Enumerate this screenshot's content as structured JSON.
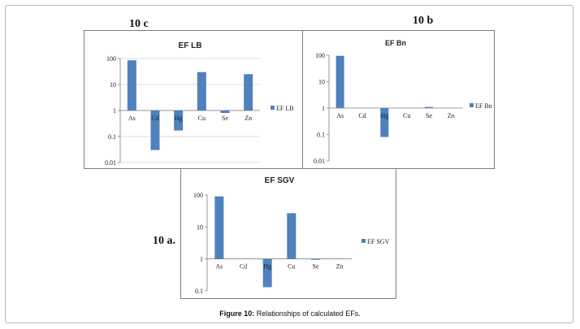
{
  "panel_labels": {
    "c": "10 c",
    "b": "10 b",
    "a": "10 a."
  },
  "caption": {
    "prefix": "Figure 10:",
    "text": " Relationships of calculated EFs."
  },
  "colors": {
    "bar": "#4f81bd",
    "axis": "#7f7f7f",
    "grid": "#d0d0d0"
  },
  "chart_data": [
    {
      "id": "c",
      "type": "bar",
      "title": "EF LB",
      "yscale": "log",
      "ylim": [
        0.01,
        100
      ],
      "yticks": [
        "100",
        "10",
        "1",
        "0.1",
        "0.01"
      ],
      "baseline": 1,
      "categories": [
        "As",
        "Cd",
        "Hg",
        "Cu",
        "Se",
        "Zn"
      ],
      "series": [
        {
          "name": "EF LB",
          "values": [
            85,
            0.03,
            0.17,
            30,
            0.8,
            25
          ]
        }
      ],
      "legend": "right",
      "grid": true
    },
    {
      "id": "b",
      "type": "bar",
      "title": "EF Bn",
      "yscale": "log",
      "ylim": [
        0.01,
        100
      ],
      "yticks": [
        "100",
        "10",
        "1",
        "0.1",
        "0.01"
      ],
      "baseline": 1,
      "categories": [
        "As",
        "Cd",
        "Hg",
        "Cu",
        "Se",
        "Zn"
      ],
      "series": [
        {
          "name": "EF Bn",
          "values": [
            95,
            1,
            0.08,
            1,
            1.1,
            1
          ]
        }
      ],
      "legend": "right",
      "grid": false
    },
    {
      "id": "a",
      "type": "bar",
      "title": "EF SGV",
      "yscale": "log",
      "ylim": [
        0.1,
        100
      ],
      "yticks": [
        "100",
        "10",
        "1",
        "0.1"
      ],
      "baseline": 1,
      "categories": [
        "As",
        "Cd",
        "Hg",
        "Cu",
        "Se",
        "Zn"
      ],
      "series": [
        {
          "name": "EF SGV",
          "values": [
            90,
            1,
            0.13,
            27,
            0.97,
            1
          ]
        }
      ],
      "legend": "right",
      "grid": false
    }
  ]
}
